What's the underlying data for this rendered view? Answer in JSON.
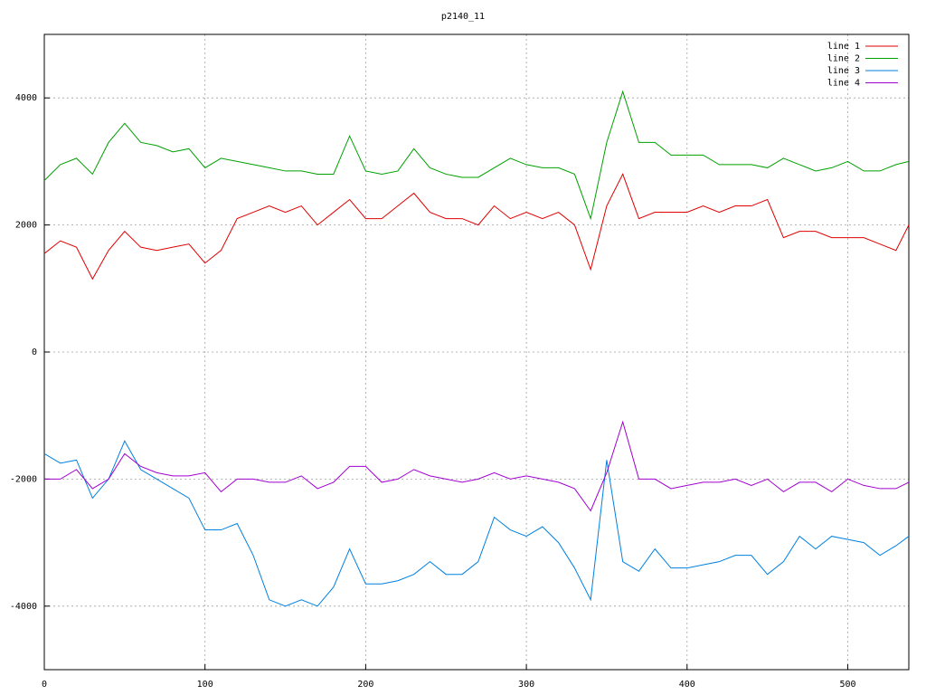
{
  "chart_data": {
    "type": "line",
    "title": "p2140_11",
    "x": [
      0,
      10,
      20,
      30,
      40,
      50,
      60,
      70,
      80,
      90,
      100,
      110,
      120,
      130,
      140,
      150,
      160,
      170,
      180,
      190,
      200,
      210,
      220,
      230,
      240,
      250,
      260,
      270,
      280,
      290,
      300,
      310,
      320,
      330,
      340,
      350,
      360,
      370,
      380,
      390,
      400,
      410,
      420,
      430,
      440,
      450,
      460,
      470,
      480,
      490,
      500,
      510,
      520,
      530,
      538
    ],
    "series": [
      {
        "name": "line 1",
        "color": "#e00000",
        "values": [
          1550,
          1750,
          1650,
          1150,
          1600,
          1900,
          1650,
          1600,
          1650,
          1700,
          1400,
          1600,
          2100,
          2200,
          2300,
          2200,
          2300,
          2000,
          2200,
          2400,
          2100,
          2100,
          2300,
          2500,
          2200,
          2100,
          2100,
          2000,
          2300,
          2100,
          2200,
          2100,
          2200,
          2000,
          1300,
          2300,
          2800,
          2100,
          2200,
          2200,
          2200,
          2300,
          2200,
          2300,
          2300,
          2400,
          1800,
          1900,
          1900,
          1800,
          1800,
          1800,
          1700,
          1600,
          2000
        ]
      },
      {
        "name": "line 2",
        "color": "#00a000",
        "values": [
          2700,
          2950,
          3050,
          2800,
          3300,
          3600,
          3300,
          3250,
          3150,
          3200,
          2900,
          3050,
          3000,
          2950,
          2900,
          2850,
          2850,
          2800,
          2800,
          3400,
          2850,
          2800,
          2850,
          3200,
          2900,
          2800,
          2750,
          2750,
          2900,
          3050,
          2950,
          2900,
          2900,
          2800,
          2100,
          3300,
          4100,
          3300,
          3300,
          3100,
          3100,
          3100,
          2950,
          2950,
          2950,
          2900,
          3050,
          2950,
          2850,
          2900,
          3000,
          2850,
          2850,
          2950,
          3000
        ]
      },
      {
        "name": "line 3",
        "color": "#0080e0",
        "values": [
          -1600,
          -1750,
          -1700,
          -2300,
          -2000,
          -1400,
          -1850,
          -2000,
          -2150,
          -2300,
          -2800,
          -2800,
          -2700,
          -3200,
          -3900,
          -4000,
          -3900,
          -4000,
          -3700,
          -3100,
          -3650,
          -3650,
          -3600,
          -3500,
          -3300,
          -3500,
          -3500,
          -3300,
          -2600,
          -2800,
          -2900,
          -2750,
          -3000,
          -3400,
          -3900,
          -1700,
          -3300,
          -3450,
          -3100,
          -3400,
          -3400,
          -3350,
          -3300,
          -3200,
          -3200,
          -3500,
          -3300,
          -2900,
          -3100,
          -2900,
          -2950,
          -3000,
          -3200,
          -3050,
          -2900
        ]
      },
      {
        "name": "line 4",
        "color": "#a000d0",
        "values": [
          -2000,
          -2000,
          -1850,
          -2150,
          -2000,
          -1600,
          -1800,
          -1900,
          -1950,
          -1950,
          -1900,
          -2200,
          -2000,
          -2000,
          -2050,
          -2050,
          -1950,
          -2150,
          -2050,
          -1800,
          -1800,
          -2050,
          -2000,
          -1850,
          -1950,
          -2000,
          -2050,
          -2000,
          -1900,
          -2000,
          -1950,
          -2000,
          -2050,
          -2150,
          -2500,
          -1900,
          -1100,
          -2000,
          -2000,
          -2150,
          -2100,
          -2050,
          -2050,
          -2000,
          -2100,
          -2000,
          -2200,
          -2050,
          -2050,
          -2200,
          -2000,
          -2100,
          -2150,
          -2150,
          -2050
        ]
      }
    ],
    "xlim": [
      0,
      538
    ],
    "xticks": [
      0,
      100,
      200,
      300,
      400,
      500
    ],
    "ylim": [
      -5000,
      5000
    ],
    "yticks": [
      -4000,
      -2000,
      0,
      2000,
      4000
    ],
    "grid": true,
    "legend": "top-right"
  }
}
